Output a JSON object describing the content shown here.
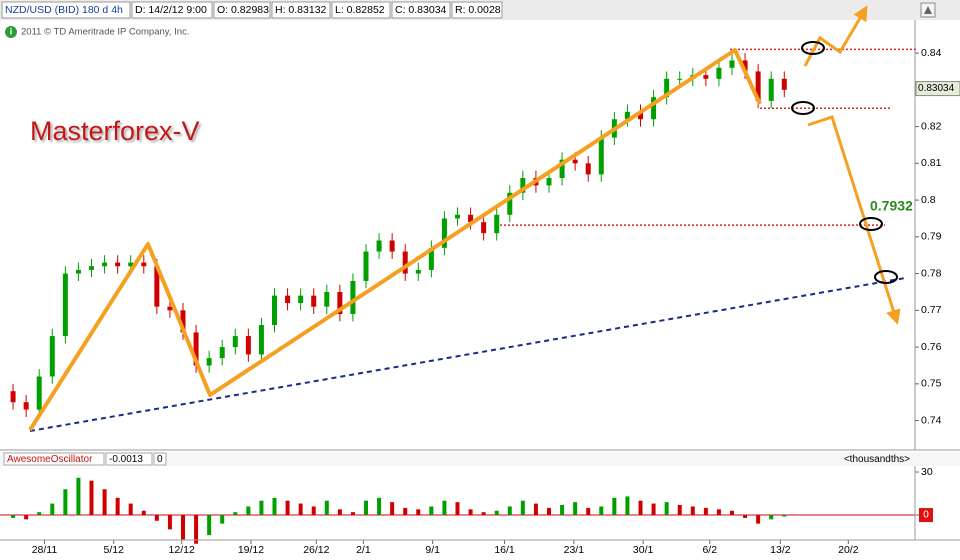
{
  "chart_data": {
    "type": "candlestick",
    "header": {
      "symbol": "NZD/USD (BID) 180 d 4h",
      "date": "D: 14/2/12 9:00",
      "open": "O: 0.82983",
      "high": "H: 0.83132",
      "low": "L: 0.82852",
      "close": "C: 0.83034",
      "range": "R: 0.0028"
    },
    "copyright": "2011 © TD Ameritrade IP Company, Inc.",
    "title": "Masterforex-V",
    "level_label": "0.7932",
    "levels": [
      0.841,
      0.825,
      0.7932
    ],
    "level_color": "#dd2222",
    "up_color": "#00a000",
    "down_color": "#d00000",
    "last_price": 0.83034,
    "xlim": [
      0,
      70
    ],
    "xticks": [
      {
        "value": 3.4,
        "label": "28/11"
      },
      {
        "value": 8.7,
        "label": "5/12"
      },
      {
        "value": 13.9,
        "label": "12/12"
      },
      {
        "value": 19.2,
        "label": "19/12"
      },
      {
        "value": 24.2,
        "label": "26/12"
      },
      {
        "value": 27.8,
        "label": "2/1"
      },
      {
        "value": 33.1,
        "label": "9/1"
      },
      {
        "value": 38.6,
        "label": "16/1"
      },
      {
        "value": 43.9,
        "label": "23/1"
      },
      {
        "value": 49.2,
        "label": "30/1"
      },
      {
        "value": 54.3,
        "label": "6/2"
      },
      {
        "value": 59.7,
        "label": "13/2"
      },
      {
        "value": 64.9,
        "label": "20/2"
      }
    ],
    "ylim": [
      0.732,
      0.849
    ],
    "yticks": [
      0.74,
      0.75,
      0.76,
      0.77,
      0.78,
      0.79,
      0.8,
      0.81,
      0.82,
      0.84
    ],
    "open": [
      0.748,
      0.745,
      0.743,
      0.752,
      0.763,
      0.78,
      0.781,
      0.782,
      0.783,
      0.782,
      0.783,
      0.782,
      0.771,
      0.77,
      0.764,
      0.755,
      0.757,
      0.76,
      0.763,
      0.758,
      0.766,
      0.774,
      0.772,
      0.774,
      0.771,
      0.775,
      0.769,
      0.778,
      0.786,
      0.789,
      0.786,
      0.78,
      0.781,
      0.787,
      0.795,
      0.796,
      0.794,
      0.791,
      0.796,
      0.802,
      0.806,
      0.804,
      0.806,
      0.811,
      0.81,
      0.807,
      0.817,
      0.822,
      0.824,
      0.822,
      0.828,
      0.833,
      0.833,
      0.834,
      0.833,
      0.836,
      0.838,
      0.835,
      0.827,
      0.833
    ],
    "high": [
      0.75,
      0.747,
      0.754,
      0.765,
      0.782,
      0.783,
      0.784,
      0.785,
      0.785,
      0.785,
      0.785,
      0.784,
      0.773,
      0.772,
      0.766,
      0.759,
      0.762,
      0.765,
      0.765,
      0.768,
      0.776,
      0.776,
      0.776,
      0.776,
      0.777,
      0.777,
      0.78,
      0.788,
      0.791,
      0.791,
      0.788,
      0.783,
      0.789,
      0.797,
      0.798,
      0.798,
      0.796,
      0.798,
      0.804,
      0.808,
      0.808,
      0.808,
      0.813,
      0.813,
      0.812,
      0.819,
      0.824,
      0.826,
      0.826,
      0.83,
      0.835,
      0.835,
      0.836,
      0.836,
      0.838,
      0.84,
      0.84,
      0.837,
      0.835,
      0.835
    ],
    "low": [
      0.743,
      0.741,
      0.741,
      0.75,
      0.761,
      0.778,
      0.779,
      0.78,
      0.78,
      0.78,
      0.78,
      0.769,
      0.768,
      0.762,
      0.753,
      0.753,
      0.755,
      0.758,
      0.756,
      0.756,
      0.764,
      0.77,
      0.77,
      0.769,
      0.769,
      0.767,
      0.767,
      0.776,
      0.784,
      0.784,
      0.778,
      0.778,
      0.779,
      0.785,
      0.793,
      0.792,
      0.789,
      0.789,
      0.794,
      0.8,
      0.802,
      0.802,
      0.804,
      0.808,
      0.805,
      0.805,
      0.815,
      0.82,
      0.82,
      0.82,
      0.826,
      0.831,
      0.831,
      0.831,
      0.831,
      0.834,
      0.833,
      0.825,
      0.825,
      0.828
    ],
    "close": [
      0.745,
      0.743,
      0.752,
      0.763,
      0.78,
      0.781,
      0.782,
      0.783,
      0.782,
      0.783,
      0.782,
      0.771,
      0.77,
      0.764,
      0.755,
      0.757,
      0.76,
      0.763,
      0.758,
      0.766,
      0.774,
      0.772,
      0.774,
      0.771,
      0.775,
      0.769,
      0.778,
      0.786,
      0.789,
      0.786,
      0.78,
      0.781,
      0.787,
      0.795,
      0.796,
      0.794,
      0.791,
      0.796,
      0.802,
      0.806,
      0.804,
      0.806,
      0.811,
      0.81,
      0.807,
      0.817,
      0.822,
      0.824,
      0.822,
      0.828,
      0.833,
      0.833,
      0.834,
      0.833,
      0.836,
      0.838,
      0.835,
      0.827,
      0.833,
      0.83
    ],
    "oscillator": {
      "name": "AwesomeOscillator",
      "value": -0.0013,
      "zero": 0,
      "unit": "<thousandths>",
      "ylim": [
        -17.4,
        34.9
      ],
      "yticks": [
        0,
        30
      ],
      "values": [
        -2,
        -3,
        2,
        8,
        18,
        26,
        24,
        18,
        12,
        8,
        3,
        -4,
        -10,
        -17,
        -20,
        -14,
        -6,
        2,
        6,
        10,
        12,
        10,
        8,
        6,
        10,
        4,
        2,
        10,
        12,
        9,
        5,
        4,
        6,
        10,
        9,
        4,
        2,
        3,
        6,
        10,
        8,
        5,
        7,
        9,
        5,
        6,
        12,
        13,
        10,
        8,
        9,
        7,
        6,
        5,
        4,
        3,
        -2,
        -6,
        -3,
        -1
      ]
    }
  }
}
